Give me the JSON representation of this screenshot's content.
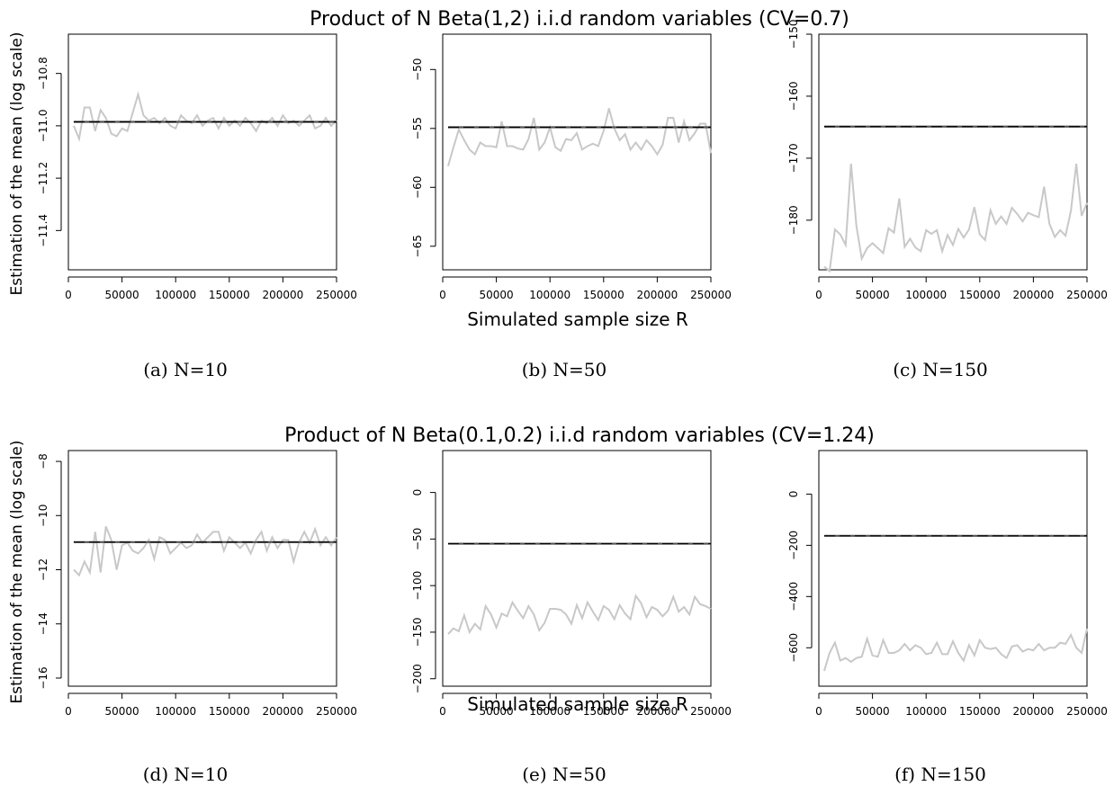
{
  "row_titles": [
    "Product of N Beta(1,2) i.i.d random variables (CV=0.7)",
    "Product of N Beta(0.1,0.2) i.i.d random variables (CV=1.24)"
  ],
  "ylabel": "Estimation of the mean (log scale)",
  "xlabel": "Simulated sample size R",
  "captions": [
    "(a) N=10",
    "(b) N=50",
    "(c) N=150",
    "(d) N=10",
    "(e) N=50",
    "(f) N=150"
  ],
  "colors": {
    "estimate": "#c8c8c8",
    "reference": "#000000",
    "axis": "#000000"
  },
  "chart_data": [
    {
      "type": "line",
      "row": 0,
      "col": 0,
      "xlim": [
        0,
        250000
      ],
      "ylim": [
        -11.55,
        -10.65
      ],
      "x_ticks": [
        0,
        50000,
        100000,
        150000,
        200000,
        250000
      ],
      "y_ticks": [
        -10.8,
        -11.0,
        -11.2,
        -11.4
      ],
      "x_tick_labels": [
        "0",
        "50000",
        "100000",
        "150000",
        "200000",
        "250000"
      ],
      "y_tick_labels": [
        "−10.8",
        "−11.0",
        "−11.2",
        "−11.4"
      ],
      "reference": [
        -10.985,
        -10.985
      ],
      "series": [
        {
          "x_start": 5000,
          "x_step": 5000,
          "values": [
            -11.0,
            -11.05,
            -10.93,
            -10.93,
            -11.02,
            -10.94,
            -10.97,
            -11.03,
            -11.04,
            -11.01,
            -11.02,
            -10.95,
            -10.88,
            -10.96,
            -10.98,
            -10.97,
            -10.99,
            -10.97,
            -11.0,
            -11.01,
            -10.96,
            -10.98,
            -10.99,
            -10.96,
            -11.0,
            -10.98,
            -10.97,
            -11.01,
            -10.97,
            -11.0,
            -10.98,
            -11.0,
            -10.97,
            -10.99,
            -11.02,
            -10.98,
            -10.99,
            -10.97,
            -11.0,
            -10.96,
            -10.99,
            -10.98,
            -11.0,
            -10.98,
            -10.96,
            -11.01,
            -11.0,
            -10.97,
            -11.0,
            -10.98
          ]
        }
      ]
    },
    {
      "type": "line",
      "row": 0,
      "col": 1,
      "xlim": [
        0,
        250000
      ],
      "ylim": [
        -67,
        -47
      ],
      "x_ticks": [
        0,
        50000,
        100000,
        150000,
        200000,
        250000
      ],
      "y_ticks": [
        -50,
        -55,
        -60,
        -65
      ],
      "x_tick_labels": [
        "0",
        "50000",
        "100000",
        "150000",
        "200000",
        "250000"
      ],
      "y_tick_labels": [
        "−50",
        "−55",
        "−60",
        "−65"
      ],
      "reference": [
        -54.9,
        -54.9
      ],
      "series": [
        {
          "x_start": 5000,
          "x_step": 5000,
          "values": [
            -58.2,
            -56.6,
            -55.1,
            -56.0,
            -56.8,
            -57.2,
            -56.2,
            -56.5,
            -56.5,
            -56.6,
            -54.4,
            -56.5,
            -56.5,
            -56.7,
            -56.8,
            -55.9,
            -54.1,
            -56.8,
            -56.2,
            -54.9,
            -56.6,
            -56.9,
            -55.9,
            -56.0,
            -55.4,
            -56.8,
            -56.5,
            -56.3,
            -56.5,
            -55.2,
            -53.3,
            -55.0,
            -56.0,
            -55.5,
            -56.8,
            -56.2,
            -56.8,
            -56.0,
            -56.5,
            -57.2,
            -56.4,
            -54.1,
            -54.1,
            -56.2,
            -54.4,
            -56.0,
            -55.4,
            -54.6,
            -54.6,
            -57.1
          ]
        }
      ]
    },
    {
      "type": "line",
      "row": 0,
      "col": 2,
      "xlim": [
        0,
        250000
      ],
      "ylim": [
        -188,
        -150
      ],
      "x_ticks": [
        0,
        50000,
        100000,
        150000,
        200000,
        250000
      ],
      "y_ticks": [
        -150,
        -160,
        -170,
        -180
      ],
      "x_tick_labels": [
        "0",
        "50000",
        "100000",
        "150000",
        "200000",
        "250000"
      ],
      "y_tick_labels": [
        "−150",
        "−160",
        "−170",
        "−180"
      ],
      "reference": [
        -164.9,
        -164.9
      ],
      "series": [
        {
          "x_start": 5000,
          "x_step": 5000,
          "values": [
            -187.5,
            -188.2,
            -181.5,
            -182.3,
            -184.0,
            -170.9,
            -180.9,
            -186.2,
            -184.5,
            -183.7,
            -184.5,
            -185.3,
            -181.3,
            -182.0,
            -176.5,
            -184.3,
            -183.0,
            -184.4,
            -185.0,
            -181.6,
            -182.2,
            -181.6,
            -185.0,
            -182.4,
            -184.0,
            -181.4,
            -182.8,
            -181.5,
            -177.9,
            -182.3,
            -183.2,
            -178.4,
            -180.6,
            -179.4,
            -180.6,
            -178.0,
            -179.0,
            -180.2,
            -178.8,
            -179.2,
            -179.5,
            -174.6,
            -180.6,
            -182.7,
            -181.6,
            -182.5,
            -178.5,
            -170.9,
            -179.3,
            -177.2
          ]
        }
      ]
    },
    {
      "type": "line",
      "row": 1,
      "col": 0,
      "xlim": [
        0,
        250000
      ],
      "ylim": [
        -16.3,
        -7.6
      ],
      "x_ticks": [
        0,
        50000,
        100000,
        150000,
        200000,
        250000
      ],
      "y_ticks": [
        -8,
        -10,
        -12,
        -14,
        -16
      ],
      "x_tick_labels": [
        "0",
        "50000",
        "100000",
        "150000",
        "200000",
        "250000"
      ],
      "y_tick_labels": [
        "−8",
        "−10",
        "−12",
        "−14",
        "−16"
      ],
      "reference": [
        -10.98,
        -10.98
      ],
      "series": [
        {
          "x_start": 5000,
          "x_step": 5000,
          "values": [
            -12.0,
            -12.2,
            -11.7,
            -12.1,
            -10.6,
            -12.1,
            -10.4,
            -10.9,
            -12.0,
            -11.1,
            -11.0,
            -11.3,
            -11.4,
            -11.2,
            -10.9,
            -11.6,
            -10.8,
            -10.9,
            -11.4,
            -11.2,
            -11.0,
            -11.2,
            -11.1,
            -10.7,
            -11.0,
            -10.8,
            -10.6,
            -10.6,
            -11.3,
            -10.8,
            -11.0,
            -11.2,
            -11.0,
            -11.4,
            -10.9,
            -10.6,
            -11.3,
            -10.8,
            -11.2,
            -10.9,
            -10.9,
            -11.7,
            -11.0,
            -10.6,
            -11.0,
            -10.5,
            -11.1,
            -10.8,
            -11.1,
            -10.8
          ]
        }
      ]
    },
    {
      "type": "line",
      "row": 1,
      "col": 1,
      "xlim": [
        0,
        250000
      ],
      "ylim": [
        -208,
        45
      ],
      "x_ticks": [
        0,
        50000,
        100000,
        150000,
        200000,
        250000
      ],
      "y_ticks": [
        0,
        -50,
        -100,
        -150,
        -200
      ],
      "x_tick_labels": [
        "0",
        "50000",
        "100000",
        "150000",
        "200000",
        "250000"
      ],
      "y_tick_labels": [
        "0",
        "−50",
        "−100",
        "−150",
        "−200"
      ],
      "reference": [
        -55,
        -55
      ],
      "series": [
        {
          "x_start": 5000,
          "x_step": 5000,
          "values": [
            -152,
            -146,
            -149,
            -132,
            -150,
            -141,
            -147,
            -122,
            -131,
            -145,
            -130,
            -133,
            -118,
            -127,
            -135,
            -122,
            -131,
            -148,
            -140,
            -125,
            -125,
            -126,
            -131,
            -141,
            -121,
            -135,
            -118,
            -128,
            -137,
            -122,
            -126,
            -136,
            -121,
            -130,
            -136,
            -111,
            -119,
            -134,
            -123,
            -126,
            -133,
            -127,
            -112,
            -128,
            -123,
            -131,
            -112,
            -120,
            -122,
            -125
          ]
        }
      ]
    },
    {
      "type": "line",
      "row": 1,
      "col": 2,
      "xlim": [
        0,
        250000
      ],
      "ylim": [
        -750,
        170
      ],
      "x_ticks": [
        0,
        50000,
        100000,
        150000,
        200000,
        250000
      ],
      "y_ticks": [
        0,
        -200,
        -400,
        -600
      ],
      "x_tick_labels": [
        "0",
        "50000",
        "100000",
        "150000",
        "200000",
        "250000"
      ],
      "y_tick_labels": [
        "0",
        "−200",
        "−400",
        "−600"
      ],
      "reference": [
        -163,
        -163
      ],
      "series": [
        {
          "x_start": 5000,
          "x_step": 5000,
          "values": [
            -690,
            -620,
            -580,
            -650,
            -640,
            -655,
            -640,
            -635,
            -565,
            -630,
            -635,
            -570,
            -620,
            -620,
            -610,
            -585,
            -610,
            -590,
            -600,
            -625,
            -620,
            -580,
            -625,
            -625,
            -575,
            -620,
            -650,
            -590,
            -630,
            -570,
            -600,
            -605,
            -600,
            -625,
            -640,
            -595,
            -590,
            -615,
            -605,
            -610,
            -585,
            -610,
            -600,
            -600,
            -580,
            -585,
            -550,
            -600,
            -620,
            -525
          ]
        }
      ]
    }
  ]
}
